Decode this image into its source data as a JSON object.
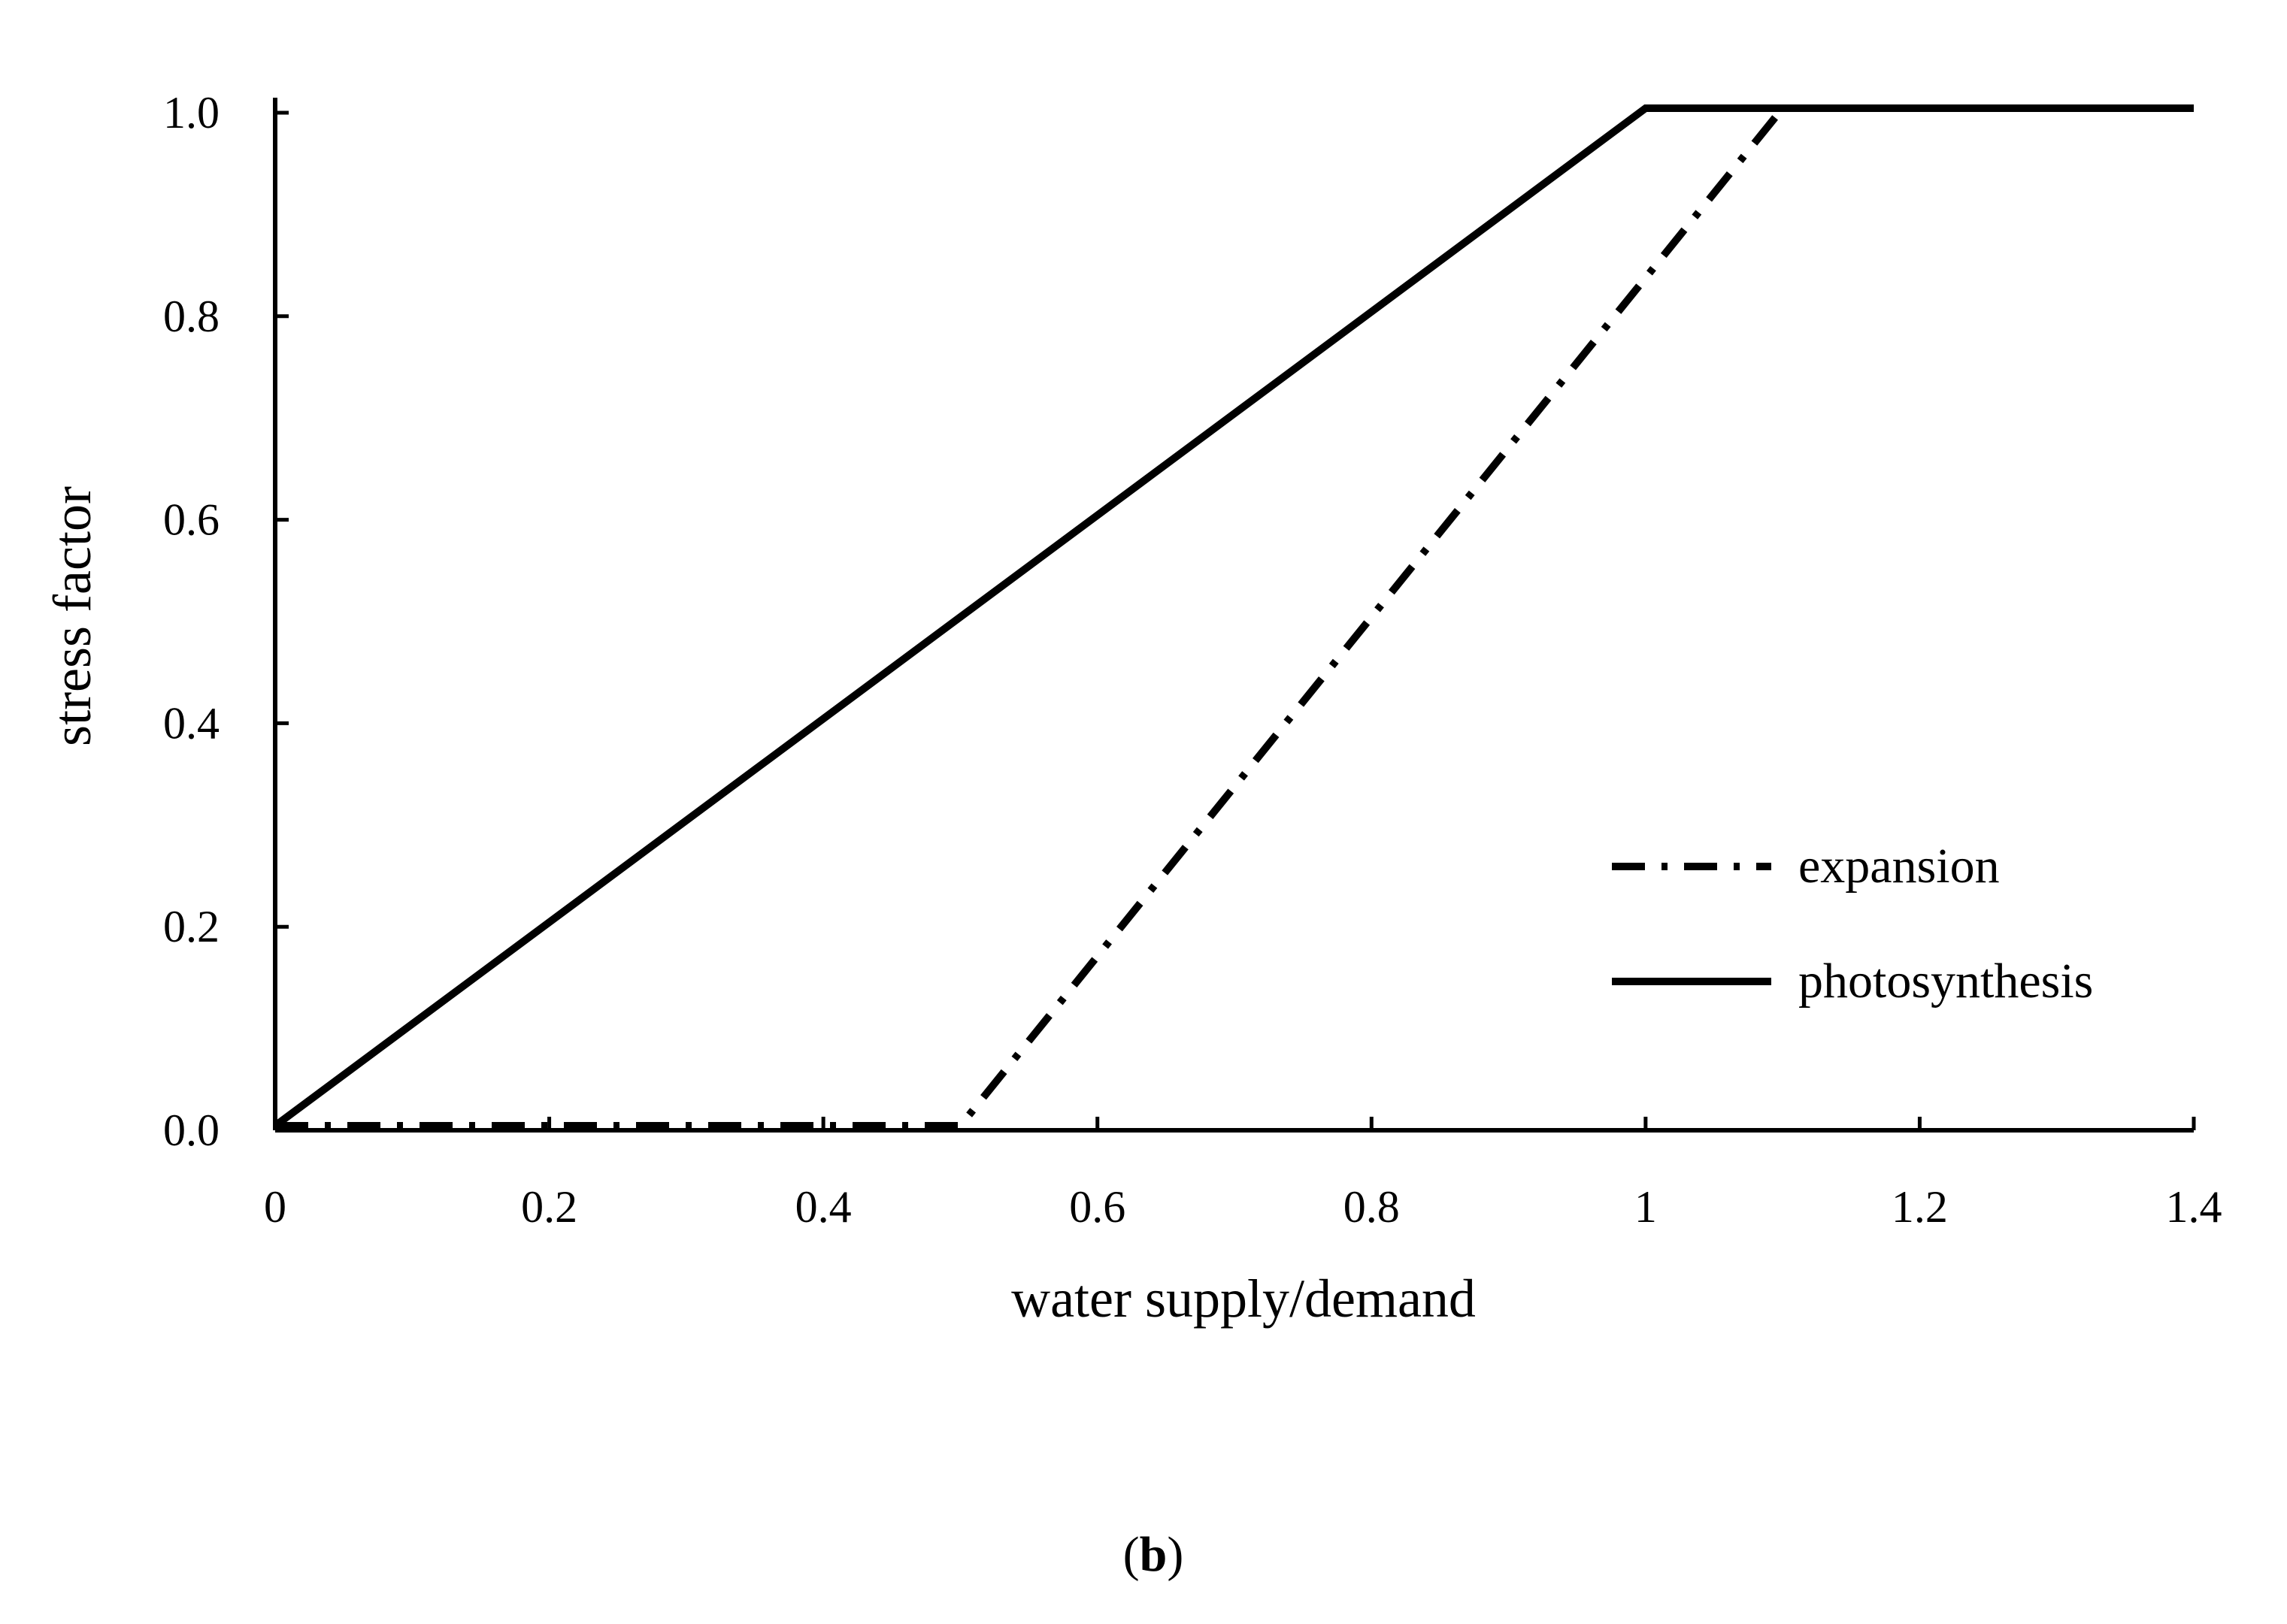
{
  "chart_data": {
    "type": "line",
    "title": "",
    "xlabel": "water supply/demand",
    "ylabel": "stress factor",
    "xlim": [
      0,
      1.4
    ],
    "ylim": [
      0,
      1.0
    ],
    "x_ticks": [
      {
        "value": 0,
        "label": "0"
      },
      {
        "value": 0.2,
        "label": "0.2"
      },
      {
        "value": 0.4,
        "label": "0.4"
      },
      {
        "value": 0.6,
        "label": "0.6"
      },
      {
        "value": 0.8,
        "label": "0.8"
      },
      {
        "value": 1.0,
        "label": "1"
      },
      {
        "value": 1.2,
        "label": "1.2"
      },
      {
        "value": 1.4,
        "label": "1.4"
      }
    ],
    "y_ticks": [
      {
        "value": 0.0,
        "label": "0.0"
      },
      {
        "value": 0.2,
        "label": "0.2"
      },
      {
        "value": 0.4,
        "label": "0.4"
      },
      {
        "value": 0.6,
        "label": "0.6"
      },
      {
        "value": 0.8,
        "label": "0.8"
      },
      {
        "value": 1.0,
        "label": "1.0"
      }
    ],
    "grid": false,
    "legend_position": "right-center",
    "series": [
      {
        "name": "expansion",
        "style": "dash-dot",
        "color": "#000000",
        "x": [
          0,
          0.5,
          1.1,
          1.4
        ],
        "y": [
          0,
          0,
          1.0,
          1.0
        ]
      },
      {
        "name": "photosynthesis",
        "style": "solid",
        "color": "#000000",
        "x": [
          0,
          1.0,
          1.4
        ],
        "y": [
          0,
          1.0,
          1.0
        ]
      }
    ],
    "panel_label": {
      "open": "(",
      "letter": "b",
      "close": ")"
    }
  }
}
